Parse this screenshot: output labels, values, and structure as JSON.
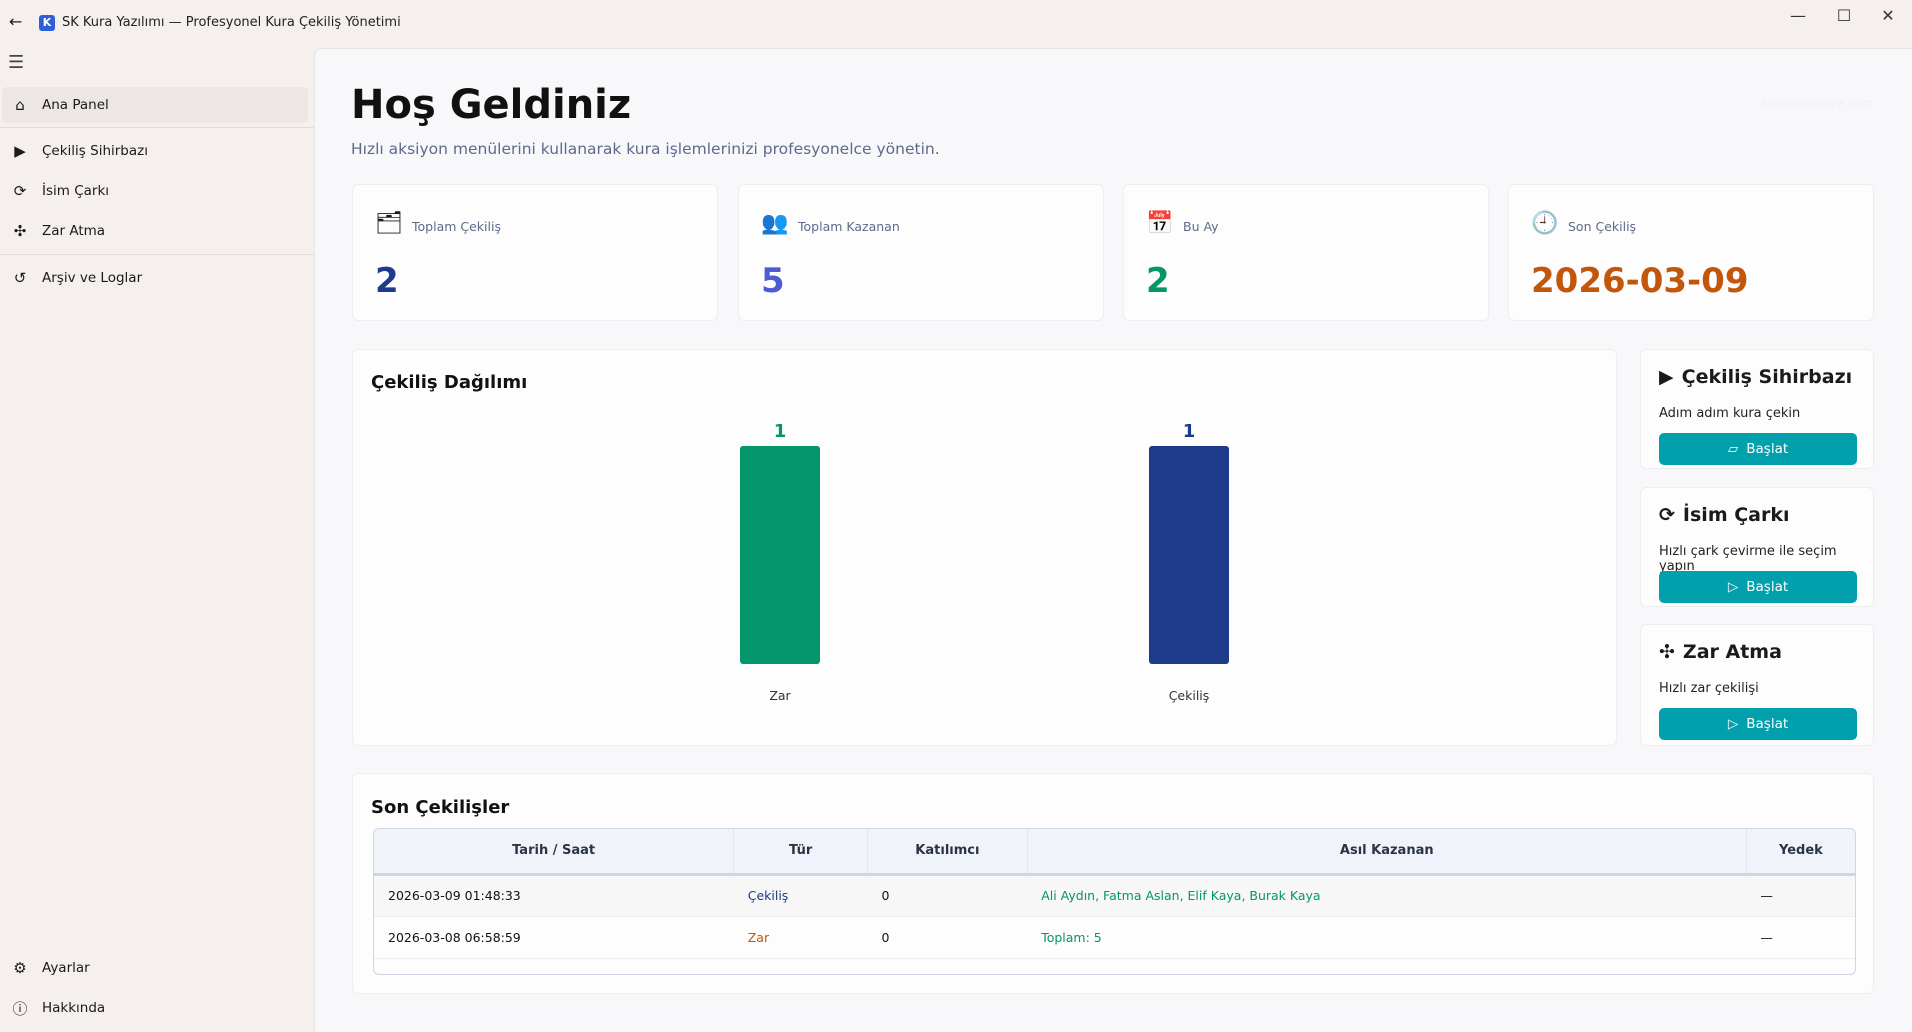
{
  "window": {
    "title": "SK Kura Yazılımı — Profesyonel Kura Çekiliş Yönetimi",
    "app_icon_letter": "K",
    "minimize": "—",
    "maximize": "☐",
    "close": "✕",
    "back": "←"
  },
  "sidebar": {
    "menu_icon": "☰",
    "items": [
      {
        "label": "Ana Panel",
        "icon": "⌂",
        "active": true
      },
      {
        "label": "Çekiliş Sihirbazı",
        "icon": "▶"
      },
      {
        "label": "İsim Çarkı",
        "icon": "⟳"
      },
      {
        "label": "Zar Atma",
        "icon": "✣"
      },
      {
        "label": "Arşiv ve Loglar",
        "icon": "↺"
      }
    ],
    "footer": [
      {
        "label": "Ayarlar",
        "icon": "⚙"
      },
      {
        "label": "Hakkında",
        "icon": "ⓘ"
      }
    ]
  },
  "header": {
    "title": "Hoş Geldiniz",
    "subtitle": "Hızlı aksiyon menülerini kullanarak kura işlemlerinizi profesyonelce yönetin.",
    "watermark": "sonercreative.com"
  },
  "stats": [
    {
      "label": "Toplam Çekiliş",
      "value": "2",
      "icon": "certificate-icon",
      "color": "#1e3a8a"
    },
    {
      "label": "Toplam Kazanan",
      "value": "5",
      "icon": "people-icon",
      "color": "#4f5bd5"
    },
    {
      "label": "Bu Ay",
      "value": "2",
      "icon": "calendar-icon",
      "color": "#059669"
    },
    {
      "label": "Son Çekiliş",
      "value": "2026-03-09",
      "icon": "history-icon",
      "color": "#c2570c"
    }
  ],
  "chart_data": {
    "type": "bar",
    "title": "Çekiliş Dağılımı",
    "categories": [
      "Zar",
      "Çekiliş"
    ],
    "values": [
      1,
      1
    ],
    "colors": [
      "#04956a",
      "#1e3a8a"
    ],
    "ylim": [
      0,
      1
    ]
  },
  "actions": [
    {
      "title": "Çekiliş Sihirbazı",
      "desc": "Adım adım kura çekin",
      "button": "Başlat",
      "icon": "▶"
    },
    {
      "title": "İsim Çarkı",
      "desc": "Hızlı çark çevirme ile seçim yapın",
      "button": "Başlat",
      "icon": "⟳"
    },
    {
      "title": "Zar Atma",
      "desc": "Hızlı zar çekilişi",
      "button": "Başlat",
      "icon": "✣"
    }
  ],
  "recent": {
    "title": "Son Çekilişler",
    "columns": [
      "Tarih / Saat",
      "Tür",
      "Katılımcı",
      "Asıl Kazanan",
      "Yedek"
    ],
    "rows": [
      [
        "2026-03-09 01:48:33",
        "Çekiliş",
        "0",
        "Ali Aydın, Fatma Aslan, Elif Kaya, Burak Kaya",
        "—"
      ],
      [
        "2026-03-08 06:58:59",
        "Zar",
        "0",
        "Toplam: 5",
        "—"
      ]
    ],
    "type_colors": {
      "Çekiliş": "#1e3a8a",
      "Zar": "#c2570c"
    },
    "winner_color": "#059669"
  }
}
